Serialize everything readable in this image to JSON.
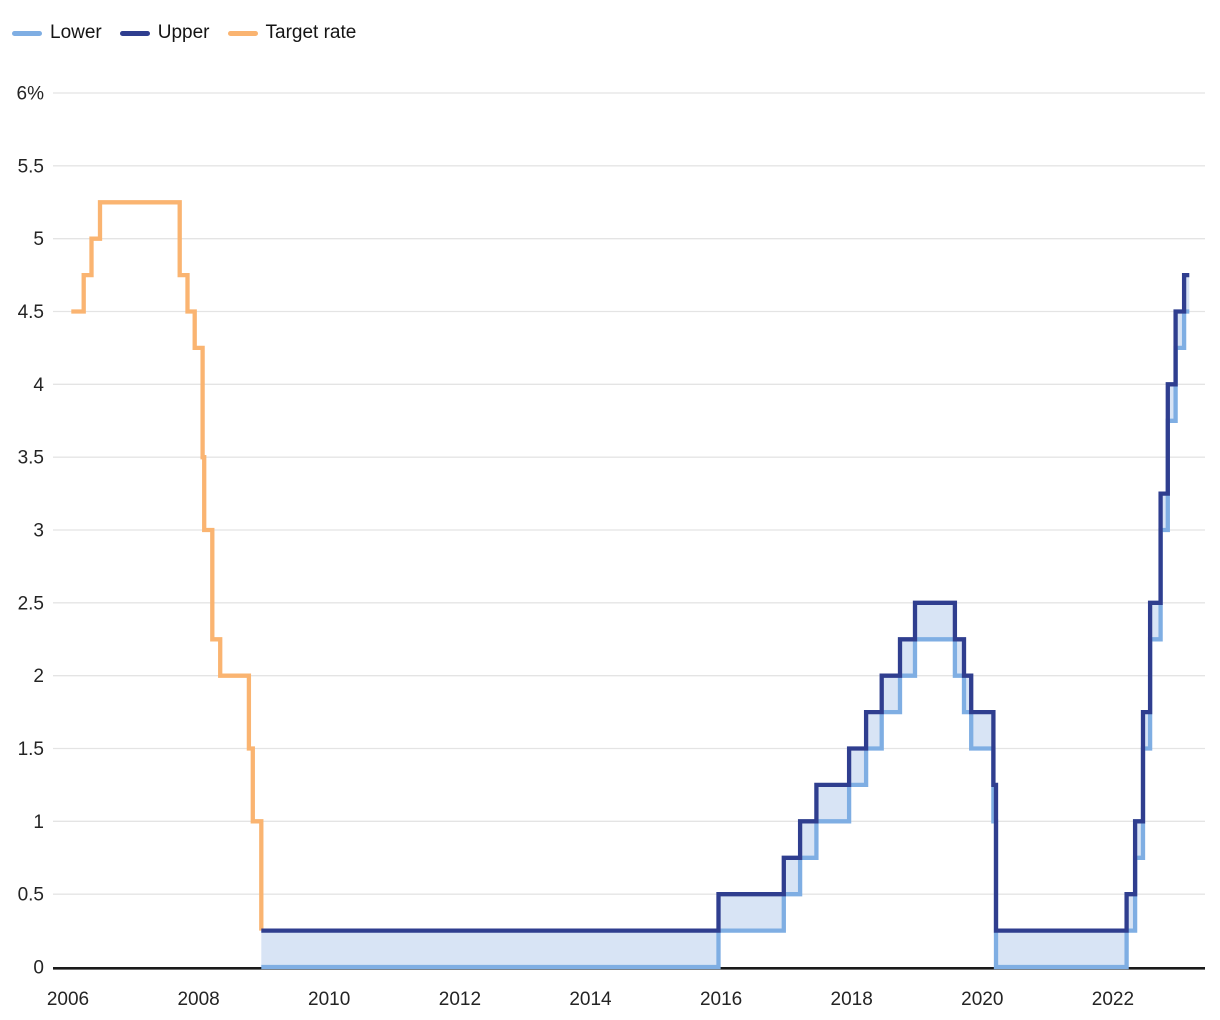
{
  "chart_data": {
    "type": "line",
    "variant": "step-after",
    "title": "",
    "xlabel": "",
    "ylabel": "",
    "grid": true,
    "legend_position": "top-left",
    "xlim": [
      2005.77,
      2023.41
    ],
    "ylim": [
      0,
      6
    ],
    "x_ticks": [
      {
        "value": 2006,
        "label": "2006"
      },
      {
        "value": 2008,
        "label": "2008"
      },
      {
        "value": 2010,
        "label": "2010"
      },
      {
        "value": 2012,
        "label": "2012"
      },
      {
        "value": 2014,
        "label": "2014"
      },
      {
        "value": 2016,
        "label": "2016"
      },
      {
        "value": 2018,
        "label": "2018"
      },
      {
        "value": 2020,
        "label": "2020"
      },
      {
        "value": 2022,
        "label": "2022"
      }
    ],
    "y_ticks": [
      {
        "value": 0,
        "label": "0"
      },
      {
        "value": 0.5,
        "label": "0.5"
      },
      {
        "value": 1,
        "label": "1"
      },
      {
        "value": 1.5,
        "label": "1.5"
      },
      {
        "value": 2,
        "label": "2"
      },
      {
        "value": 2.5,
        "label": "2.5"
      },
      {
        "value": 3,
        "label": "3"
      },
      {
        "value": 3.5,
        "label": "3.5"
      },
      {
        "value": 4,
        "label": "4"
      },
      {
        "value": 4.5,
        "label": "4.5"
      },
      {
        "value": 5,
        "label": "5"
      },
      {
        "value": 5.5,
        "label": "5.5"
      },
      {
        "value": 6,
        "label": "6%"
      }
    ],
    "series": [
      {
        "name": "Lower",
        "color": "#7FAEE3",
        "end": 2023.17,
        "steps": [
          [
            2008.96,
            0
          ],
          [
            2015.96,
            0.25
          ],
          [
            2016.96,
            0.5
          ],
          [
            2017.21,
            0.75
          ],
          [
            2017.46,
            1.0
          ],
          [
            2017.96,
            1.25
          ],
          [
            2018.22,
            1.5
          ],
          [
            2018.46,
            1.75
          ],
          [
            2018.74,
            2.0
          ],
          [
            2018.97,
            2.25
          ],
          [
            2019.58,
            2.0
          ],
          [
            2019.72,
            1.75
          ],
          [
            2019.83,
            1.5
          ],
          [
            2020.17,
            1.0
          ],
          [
            2020.21,
            0
          ],
          [
            2022.21,
            0.25
          ],
          [
            2022.34,
            0.75
          ],
          [
            2022.46,
            1.5
          ],
          [
            2022.57,
            2.25
          ],
          [
            2022.73,
            3.0
          ],
          [
            2022.84,
            3.75
          ],
          [
            2022.96,
            4.25
          ],
          [
            2023.09,
            4.5
          ]
        ]
      },
      {
        "name": "Upper",
        "color": "#2F3E8F",
        "end": 2023.17,
        "steps": [
          [
            2008.96,
            0.25
          ],
          [
            2015.96,
            0.5
          ],
          [
            2016.96,
            0.75
          ],
          [
            2017.21,
            1.0
          ],
          [
            2017.46,
            1.25
          ],
          [
            2017.96,
            1.5
          ],
          [
            2018.22,
            1.75
          ],
          [
            2018.46,
            2.0
          ],
          [
            2018.74,
            2.25
          ],
          [
            2018.97,
            2.5
          ],
          [
            2019.58,
            2.25
          ],
          [
            2019.72,
            2.0
          ],
          [
            2019.83,
            1.75
          ],
          [
            2020.17,
            1.25
          ],
          [
            2020.21,
            0.25
          ],
          [
            2022.21,
            0.5
          ],
          [
            2022.34,
            1.0
          ],
          [
            2022.46,
            1.75
          ],
          [
            2022.57,
            2.5
          ],
          [
            2022.73,
            3.25
          ],
          [
            2022.84,
            4.0
          ],
          [
            2022.96,
            4.5
          ],
          [
            2023.09,
            4.75
          ]
        ]
      },
      {
        "name": "Target rate",
        "color": "#FAB471",
        "end": 2008.96,
        "steps": [
          [
            2006.05,
            4.5
          ],
          [
            2006.24,
            4.75
          ],
          [
            2006.36,
            5.0
          ],
          [
            2006.49,
            5.25
          ],
          [
            2007.71,
            4.75
          ],
          [
            2007.83,
            4.5
          ],
          [
            2007.94,
            4.25
          ],
          [
            2008.06,
            3.5
          ],
          [
            2008.085,
            3.0
          ],
          [
            2008.21,
            2.25
          ],
          [
            2008.33,
            2.0
          ],
          [
            2008.77,
            1.5
          ],
          [
            2008.83,
            1.0
          ],
          [
            2008.96,
            0.25
          ]
        ]
      }
    ],
    "band": {
      "lower": "Lower",
      "upper": "Upper",
      "fill": "#D8E4F5"
    },
    "colors": {
      "grid": "#E4E4E4",
      "axis": "#1A1A1A",
      "tick_text": "#242424",
      "legend_text": "#141414",
      "background": "#FFFFFF"
    }
  }
}
